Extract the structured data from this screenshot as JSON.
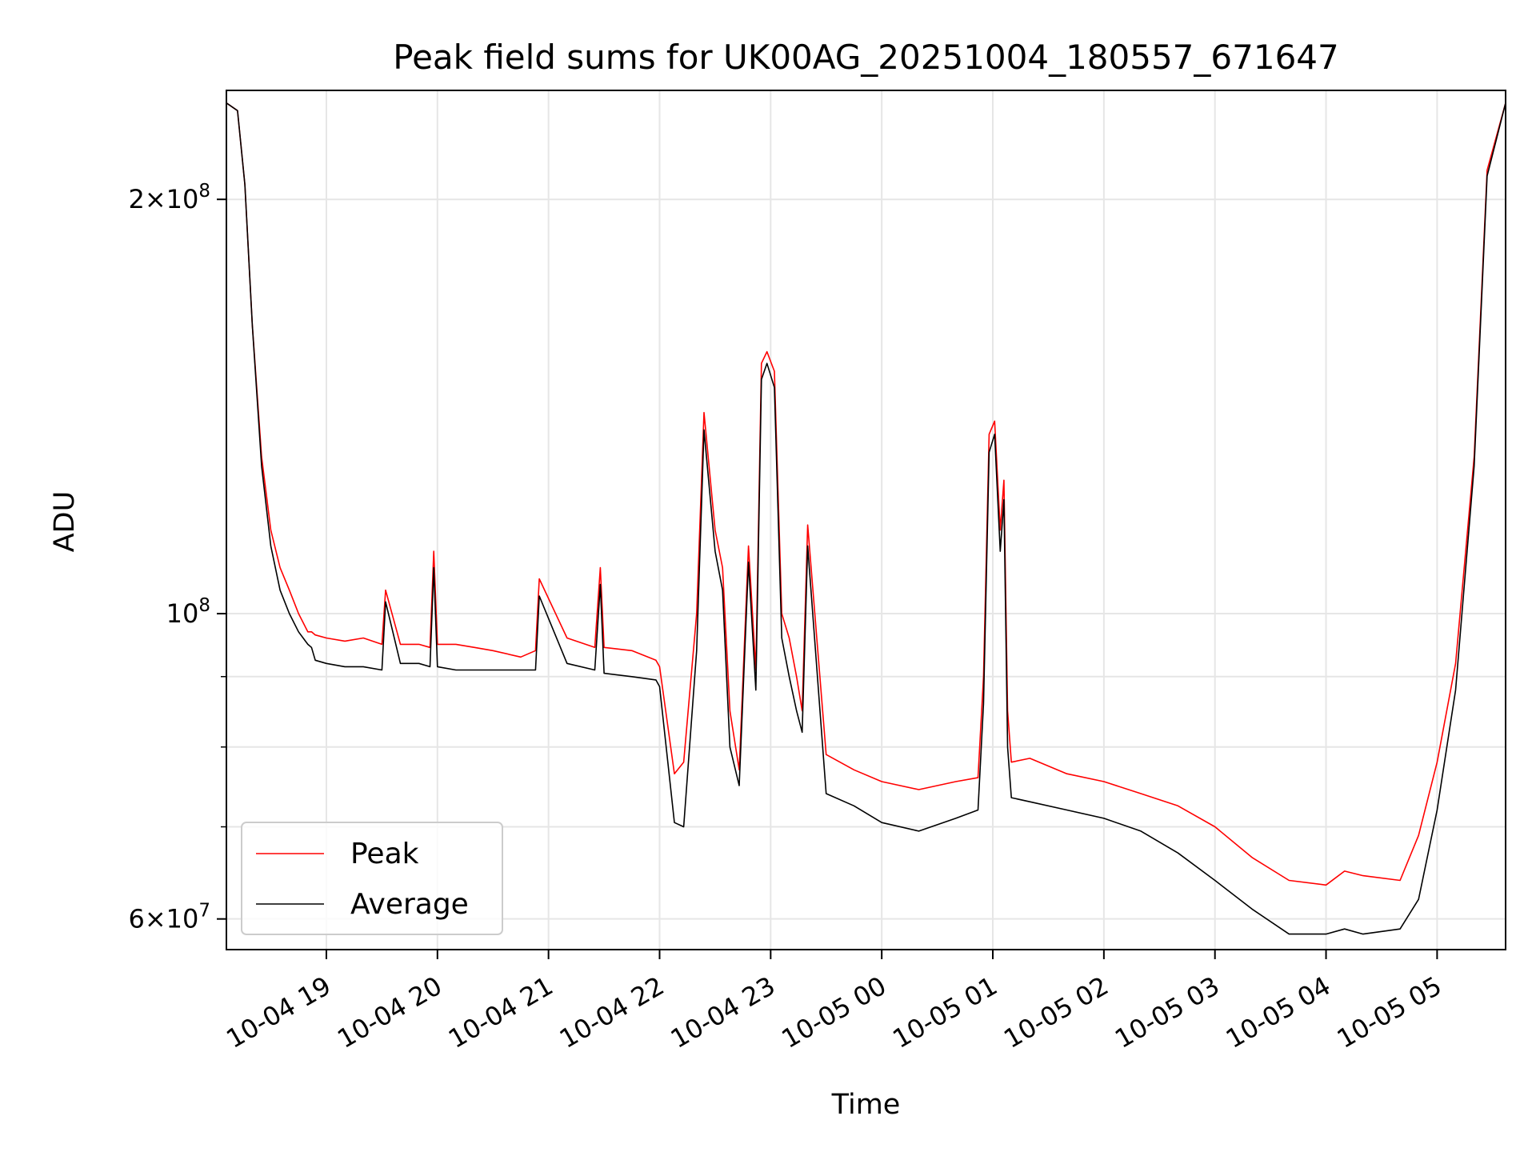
{
  "chart_data": {
    "type": "line",
    "title": "Peak field sums for UK00AG_20251004_180557_671647",
    "xlabel": "Time",
    "ylabel": "ADU",
    "yscale": "log",
    "ylim": [
      57000000,
      240000000
    ],
    "xlim": [
      "2025-10-04 18:06",
      "2025-10-05 05:37"
    ],
    "grid": true,
    "legend_position": "lower-left",
    "x_ticks": [
      {
        "value": "2025-10-04 19:00",
        "label": "10-04 19"
      },
      {
        "value": "2025-10-04 20:00",
        "label": "10-04 20"
      },
      {
        "value": "2025-10-04 21:00",
        "label": "10-04 21"
      },
      {
        "value": "2025-10-04 22:00",
        "label": "10-04 22"
      },
      {
        "value": "2025-10-04 23:00",
        "label": "10-04 23"
      },
      {
        "value": "2025-10-05 00:00",
        "label": "10-05 00"
      },
      {
        "value": "2025-10-05 01:00",
        "label": "10-05 01"
      },
      {
        "value": "2025-10-05 02:00",
        "label": "10-05 02"
      },
      {
        "value": "2025-10-05 03:00",
        "label": "10-05 03"
      },
      {
        "value": "2025-10-05 04:00",
        "label": "10-05 04"
      },
      {
        "value": "2025-10-05 05:00",
        "label": "10-05 05"
      }
    ],
    "y_ticks": [
      {
        "value": 200000000,
        "base": "2×10",
        "exp": "8"
      },
      {
        "value": 100000000,
        "base": "10",
        "exp": "8"
      },
      {
        "value": 60000000,
        "base": "6×10",
        "exp": "7"
      }
    ],
    "y_minor_ticks": [
      70000000,
      80000000,
      90000000
    ],
    "series": [
      {
        "name": "Peak",
        "color": "#ff0000",
        "x": [
          "2025-10-04 18:06",
          "2025-10-04 18:12",
          "2025-10-04 18:16",
          "2025-10-04 18:20",
          "2025-10-04 18:25",
          "2025-10-04 18:30",
          "2025-10-04 18:35",
          "2025-10-04 18:40",
          "2025-10-04 18:45",
          "2025-10-04 18:50",
          "2025-10-04 18:52",
          "2025-10-04 18:54",
          "2025-10-04 19:00",
          "2025-10-04 19:10",
          "2025-10-04 19:20",
          "2025-10-04 19:30",
          "2025-10-04 19:32",
          "2025-10-04 19:40",
          "2025-10-04 19:50",
          "2025-10-04 19:56",
          "2025-10-04 19:58",
          "2025-10-04 20:00",
          "2025-10-04 20:10",
          "2025-10-04 20:20",
          "2025-10-04 20:30",
          "2025-10-04 20:45",
          "2025-10-04 20:53",
          "2025-10-04 20:55",
          "2025-10-04 21:10",
          "2025-10-04 21:25",
          "2025-10-04 21:28",
          "2025-10-04 21:30",
          "2025-10-04 21:45",
          "2025-10-04 21:58",
          "2025-10-04 22:00",
          "2025-10-04 22:08",
          "2025-10-04 22:13",
          "2025-10-04 22:20",
          "2025-10-04 22:24",
          "2025-10-04 22:30",
          "2025-10-04 22:34",
          "2025-10-04 22:38",
          "2025-10-04 22:43",
          "2025-10-04 22:48",
          "2025-10-04 22:52",
          "2025-10-04 22:55",
          "2025-10-04 22:58",
          "2025-10-04 23:02",
          "2025-10-04 23:06",
          "2025-10-04 23:10",
          "2025-10-04 23:14",
          "2025-10-04 23:17",
          "2025-10-04 23:20",
          "2025-10-04 23:30",
          "2025-10-04 23:45",
          "2025-10-05 00:00",
          "2025-10-05 00:20",
          "2025-10-05 00:40",
          "2025-10-05 00:52",
          "2025-10-05 00:55",
          "2025-10-05 00:58",
          "2025-10-05 01:01",
          "2025-10-05 01:04",
          "2025-10-05 01:06",
          "2025-10-05 01:08",
          "2025-10-05 01:10",
          "2025-10-05 01:20",
          "2025-10-05 01:40",
          "2025-10-05 02:00",
          "2025-10-05 02:20",
          "2025-10-05 02:40",
          "2025-10-05 03:00",
          "2025-10-05 03:20",
          "2025-10-05 03:40",
          "2025-10-05 04:00",
          "2025-10-05 04:10",
          "2025-10-05 04:20",
          "2025-10-05 04:40",
          "2025-10-05 04:50",
          "2025-10-05 05:00",
          "2025-10-05 05:10",
          "2025-10-05 05:20",
          "2025-10-05 05:27",
          "2025-10-05 05:37"
        ],
        "values": [
          235000000,
          232000000,
          205000000,
          162000000,
          130000000,
          115000000,
          108000000,
          104000000,
          100000000,
          97000000,
          97000000,
          96500000,
          96000000,
          95500000,
          96000000,
          95000000,
          104000000,
          95000000,
          95000000,
          94500000,
          111000000,
          95000000,
          95000000,
          94500000,
          94000000,
          93000000,
          94000000,
          106000000,
          96000000,
          94500000,
          108000000,
          94500000,
          94000000,
          92500000,
          91500000,
          76500000,
          78000000,
          100000000,
          140000000,
          115000000,
          108000000,
          85000000,
          77000000,
          112000000,
          91000000,
          152000000,
          155000000,
          150000000,
          100000000,
          96000000,
          90000000,
          85000000,
          116000000,
          79000000,
          77000000,
          75500000,
          74500000,
          75500000,
          76000000,
          90000000,
          135000000,
          138000000,
          115000000,
          125000000,
          85000000,
          78000000,
          78500000,
          76500000,
          75500000,
          74000000,
          72500000,
          70000000,
          66500000,
          64000000,
          63500000,
          65000000,
          64500000,
          64000000,
          69000000,
          78000000,
          92000000,
          130000000,
          210000000,
          235000000
        ]
      },
      {
        "name": "Average",
        "color": "#000000",
        "x": [
          "2025-10-04 18:06",
          "2025-10-04 18:12",
          "2025-10-04 18:16",
          "2025-10-04 18:20",
          "2025-10-04 18:25",
          "2025-10-04 18:30",
          "2025-10-04 18:35",
          "2025-10-04 18:40",
          "2025-10-04 18:45",
          "2025-10-04 18:50",
          "2025-10-04 18:52",
          "2025-10-04 18:54",
          "2025-10-04 19:00",
          "2025-10-04 19:10",
          "2025-10-04 19:20",
          "2025-10-04 19:30",
          "2025-10-04 19:32",
          "2025-10-04 19:40",
          "2025-10-04 19:50",
          "2025-10-04 19:56",
          "2025-10-04 19:58",
          "2025-10-04 20:00",
          "2025-10-04 20:10",
          "2025-10-04 20:20",
          "2025-10-04 20:30",
          "2025-10-04 20:45",
          "2025-10-04 20:53",
          "2025-10-04 20:55",
          "2025-10-04 21:10",
          "2025-10-04 21:25",
          "2025-10-04 21:28",
          "2025-10-04 21:30",
          "2025-10-04 21:45",
          "2025-10-04 21:58",
          "2025-10-04 22:00",
          "2025-10-04 22:08",
          "2025-10-04 22:13",
          "2025-10-04 22:20",
          "2025-10-04 22:24",
          "2025-10-04 22:30",
          "2025-10-04 22:34",
          "2025-10-04 22:38",
          "2025-10-04 22:43",
          "2025-10-04 22:48",
          "2025-10-04 22:52",
          "2025-10-04 22:55",
          "2025-10-04 22:58",
          "2025-10-04 23:02",
          "2025-10-04 23:06",
          "2025-10-04 23:10",
          "2025-10-04 23:14",
          "2025-10-04 23:17",
          "2025-10-04 23:20",
          "2025-10-04 23:30",
          "2025-10-04 23:45",
          "2025-10-05 00:00",
          "2025-10-05 00:20",
          "2025-10-05 00:40",
          "2025-10-05 00:52",
          "2025-10-05 00:55",
          "2025-10-05 00:58",
          "2025-10-05 01:01",
          "2025-10-05 01:04",
          "2025-10-05 01:06",
          "2025-10-05 01:08",
          "2025-10-05 01:10",
          "2025-10-05 01:20",
          "2025-10-05 01:40",
          "2025-10-05 02:00",
          "2025-10-05 02:20",
          "2025-10-05 02:40",
          "2025-10-05 03:00",
          "2025-10-05 03:20",
          "2025-10-05 03:40",
          "2025-10-05 04:00",
          "2025-10-05 04:10",
          "2025-10-05 04:20",
          "2025-10-05 04:40",
          "2025-10-05 04:50",
          "2025-10-05 05:00",
          "2025-10-05 05:10",
          "2025-10-05 05:20",
          "2025-10-05 05:27",
          "2025-10-05 05:37"
        ],
        "values": [
          235000000,
          232000000,
          205000000,
          162000000,
          128000000,
          112000000,
          104000000,
          100000000,
          97000000,
          95000000,
          94500000,
          92500000,
          92000000,
          91500000,
          91500000,
          91000000,
          102000000,
          92000000,
          92000000,
          91500000,
          108000000,
          91500000,
          91000000,
          91000000,
          91000000,
          91000000,
          91000000,
          103000000,
          92000000,
          91000000,
          105000000,
          90500000,
          90000000,
          89500000,
          88500000,
          70500000,
          70000000,
          94000000,
          136000000,
          111000000,
          104000000,
          80000000,
          75000000,
          109000000,
          88000000,
          148000000,
          152000000,
          146000000,
          96000000,
          90000000,
          85000000,
          82000000,
          112000000,
          74000000,
          72500000,
          70500000,
          69500000,
          71000000,
          72000000,
          86000000,
          131000000,
          135000000,
          111000000,
          121000000,
          80000000,
          73500000,
          73000000,
          72000000,
          71000000,
          69500000,
          67000000,
          64000000,
          61000000,
          58500000,
          58500000,
          59000000,
          58500000,
          59000000,
          62000000,
          72000000,
          88000000,
          128000000,
          208000000,
          235000000
        ]
      }
    ]
  }
}
